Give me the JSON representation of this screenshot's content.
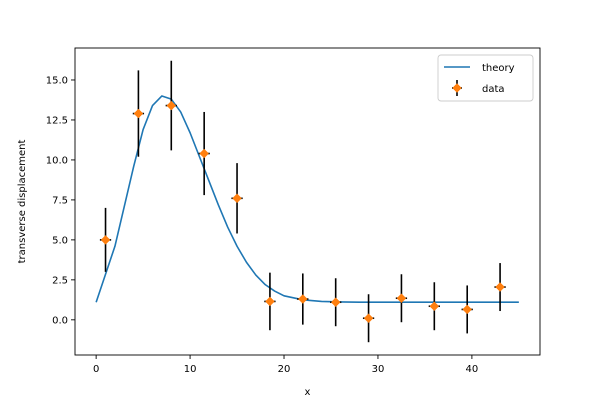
{
  "chart_data": {
    "type": "scatter",
    "xlabel": "x",
    "ylabel": "transverse displacement",
    "xlim": [
      -2.25,
      47.25
    ],
    "ylim": [
      -2.2,
      17.0
    ],
    "xticks": [
      0,
      10,
      20,
      30,
      40
    ],
    "yticks": [
      0.0,
      2.5,
      5.0,
      7.5,
      10.0,
      12.5,
      15.0
    ],
    "xtick_labels": [
      "0",
      "10",
      "20",
      "30",
      "40"
    ],
    "ytick_labels": [
      "0.0",
      "2.5",
      "5.0",
      "7.5",
      "10.0",
      "12.5",
      "15.0"
    ],
    "grid": false,
    "legend": {
      "placement": "top-right",
      "entries": [
        "theory",
        "data"
      ]
    },
    "series": [
      {
        "name": "theory",
        "kind": "line",
        "color": "#1f77b4",
        "x": [
          0,
          2,
          4,
          5,
          6,
          7,
          8,
          9,
          10,
          11,
          12,
          13,
          14,
          15,
          16,
          17,
          18,
          19,
          20,
          22,
          24,
          26,
          28,
          30,
          35,
          40,
          45
        ],
        "y": [
          1.1,
          4.6,
          9.6,
          11.9,
          13.4,
          14.0,
          13.8,
          13.0,
          11.7,
          10.2,
          8.7,
          7.2,
          5.8,
          4.6,
          3.6,
          2.8,
          2.2,
          1.8,
          1.5,
          1.25,
          1.15,
          1.12,
          1.1,
          1.1,
          1.1,
          1.1,
          1.1
        ]
      },
      {
        "name": "data",
        "kind": "errorbar",
        "color": "#ff7f0e",
        "errorbar_color": "#000000",
        "x": [
          1.0,
          4.5,
          8.0,
          11.5,
          15.0,
          18.5,
          22.0,
          25.5,
          29.0,
          32.5,
          36.0,
          39.5,
          43.0
        ],
        "y": [
          5.0,
          12.9,
          13.4,
          10.4,
          7.6,
          1.15,
          1.3,
          1.1,
          0.1,
          1.35,
          0.85,
          0.65,
          2.05
        ],
        "yerr": [
          2.0,
          2.7,
          2.8,
          2.6,
          2.2,
          1.8,
          1.6,
          1.5,
          1.5,
          1.5,
          1.5,
          1.5,
          1.5
        ],
        "xerr": [
          0.6,
          0.6,
          0.6,
          0.6,
          0.6,
          0.6,
          0.6,
          0.6,
          0.6,
          0.6,
          0.6,
          0.6,
          0.6
        ]
      }
    ]
  }
}
